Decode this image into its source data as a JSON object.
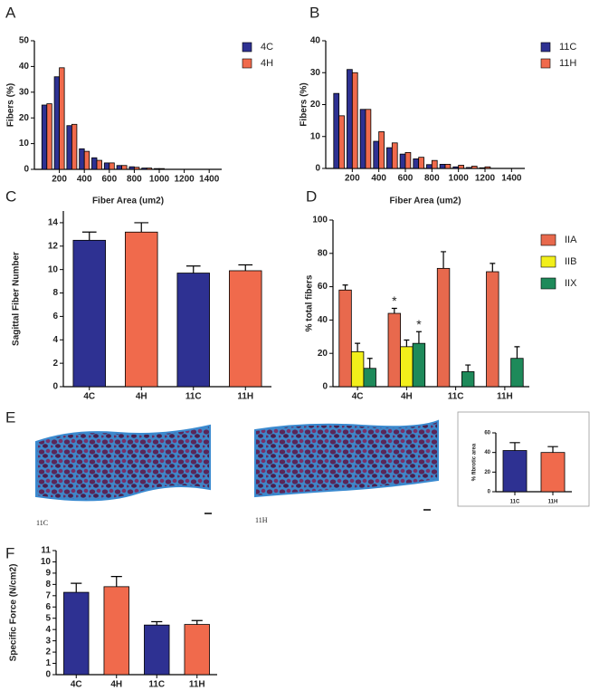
{
  "chart_data": [
    {
      "type": "bar",
      "label": "A",
      "ylabel": "Fibers (%)",
      "xlabel": "Fiber Area (um2)",
      "x": [
        100,
        200,
        300,
        400,
        500,
        600,
        700,
        800,
        900,
        1000
      ],
      "xlim": [
        0,
        1500
      ],
      "xticks": [
        200,
        400,
        600,
        800,
        1000,
        1200,
        1400
      ],
      "ylim": [
        0,
        50
      ],
      "yticks": [
        0,
        10,
        20,
        30,
        40,
        50
      ],
      "legend": "right",
      "series": [
        {
          "name": "4C",
          "color": "#2e3192",
          "values": [
            25,
            36,
            17,
            8,
            4.5,
            2.5,
            1.5,
            1,
            0.5,
            0.3
          ]
        },
        {
          "name": "4H",
          "color": "#f06a4c",
          "values": [
            25.5,
            39.5,
            17.5,
            7,
            3.5,
            2.5,
            1.5,
            0.8,
            0.5,
            0.3
          ]
        }
      ]
    },
    {
      "type": "bar",
      "label": "B",
      "ylabel": "Fibers (%)",
      "xlabel": "Fiber Area (um2)",
      "x": [
        100,
        200,
        300,
        400,
        500,
        600,
        700,
        800,
        900,
        1000,
        1100,
        1200
      ],
      "xlim": [
        0,
        1500
      ],
      "xticks": [
        200,
        400,
        600,
        800,
        1000,
        1200,
        1400
      ],
      "ylim": [
        0,
        40
      ],
      "yticks": [
        0,
        10,
        20,
        30,
        40
      ],
      "legend": "right",
      "series": [
        {
          "name": "11C",
          "color": "#2e3192",
          "values": [
            23.5,
            31,
            18.5,
            8.5,
            6.5,
            4.5,
            3,
            1.2,
            1.3,
            0.5,
            0.3,
            0.2
          ]
        },
        {
          "name": "11H",
          "color": "#f06a4c",
          "values": [
            16.5,
            30,
            18.5,
            11.5,
            8,
            5,
            3.5,
            2.5,
            1.3,
            1,
            0.7,
            0.5
          ]
        }
      ]
    },
    {
      "type": "bar",
      "label": "C",
      "ylabel": "Sagittal Fiber Number",
      "categories": [
        "4C",
        "4H",
        "11C",
        "11H"
      ],
      "values": [
        12.5,
        13.2,
        9.7,
        9.9
      ],
      "errors": [
        0.7,
        0.8,
        0.6,
        0.5
      ],
      "colors": [
        "#2e3192",
        "#f06a4c",
        "#2e3192",
        "#f06a4c"
      ],
      "ylim": [
        0,
        15
      ],
      "yticks": [
        0,
        2,
        4,
        6,
        8,
        10,
        12,
        14
      ]
    },
    {
      "type": "bar",
      "label": "D",
      "ylabel": "% total fibers",
      "categories": [
        "4C",
        "4H",
        "11C",
        "11H"
      ],
      "legend": "right",
      "series": [
        {
          "name": "IIA",
          "color": "#e8694d",
          "values": [
            58,
            44,
            71,
            69
          ],
          "errors": [
            3,
            3,
            10,
            5
          ]
        },
        {
          "name": "IIB",
          "color": "#f2ef1a",
          "values": [
            21,
            24,
            null,
            null
          ],
          "errors": [
            5,
            4,
            null,
            null
          ]
        },
        {
          "name": "IIX",
          "color": "#1e8a5a",
          "values": [
            11,
            26,
            9,
            17
          ],
          "errors": [
            6,
            7,
            4,
            7
          ]
        }
      ],
      "annotations": [
        {
          "text": "*",
          "category": "4H",
          "series": "IIA"
        },
        {
          "text": "*",
          "category": "4H",
          "series": "IIX"
        }
      ],
      "ylim": [
        0,
        100
      ],
      "yticks": [
        0,
        20,
        40,
        60,
        80,
        100
      ]
    },
    {
      "type": "bar",
      "label": "E",
      "ylabel": "% fibrotic area",
      "categories": [
        "11C",
        "11H"
      ],
      "values": [
        42,
        40
      ],
      "errors": [
        8,
        6
      ],
      "colors": [
        "#2e3192",
        "#f06a4c"
      ],
      "ylim": [
        0,
        60
      ],
      "yticks": [
        0,
        20,
        40,
        60
      ]
    },
    {
      "type": "bar",
      "label": "F",
      "ylabel": "Specific Force (N/cm2)",
      "categories": [
        "4C",
        "4H",
        "11C",
        "11H"
      ],
      "values": [
        7.3,
        7.8,
        4.4,
        4.45
      ],
      "errors": [
        0.8,
        0.9,
        0.3,
        0.35
      ],
      "colors": [
        "#2e3192",
        "#f06a4c",
        "#2e3192",
        "#f06a4c"
      ],
      "ylim": [
        0,
        11
      ],
      "yticks": [
        0,
        1,
        2,
        3,
        4,
        5,
        6,
        7,
        8,
        9,
        10,
        11
      ]
    }
  ],
  "images": [
    {
      "caption": "11C"
    },
    {
      "caption": "11H"
    }
  ]
}
